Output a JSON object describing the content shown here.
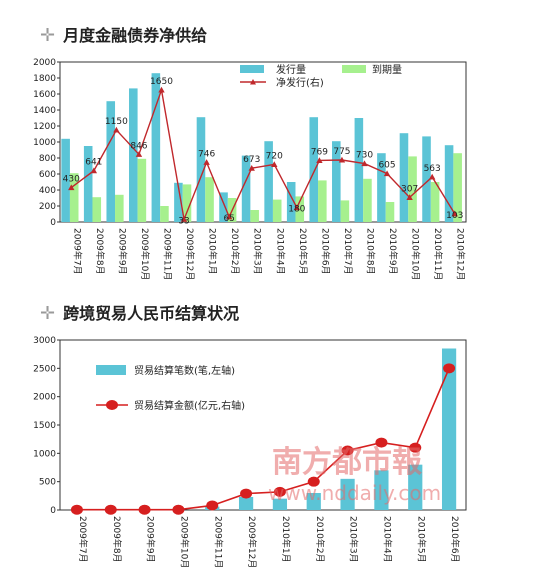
{
  "chart_data": [
    {
      "type": "bar",
      "title": "月度金融债券净供给",
      "categories": [
        "2009年7月",
        "2009年8月",
        "2009年9月",
        "2009年10月",
        "2009年11月",
        "2009年12月",
        "2010年1月",
        "2010年2月",
        "2010年3月",
        "2010年4月",
        "2010年5月",
        "2010年6月",
        "2010年7月",
        "2010年8月",
        "2010年9月",
        "2010年10月",
        "2010年11月",
        "2010年12月"
      ],
      "ylim": [
        0,
        2000
      ],
      "y2lim": [
        0,
        2000
      ],
      "yticks": [
        0,
        200,
        400,
        600,
        800,
        1000,
        1200,
        1400,
        1600,
        1800,
        2000
      ],
      "series": [
        {
          "name": "发行量",
          "type": "bar",
          "color": "#5bc4d6",
          "values": [
            1040,
            950,
            1510,
            1670,
            1860,
            490,
            1310,
            370,
            830,
            1010,
            500,
            1310,
            1010,
            1300,
            860,
            1110,
            1070,
            960
          ]
        },
        {
          "name": "到期量",
          "type": "bar",
          "color": "#a6f08e",
          "values": [
            610,
            310,
            340,
            790,
            200,
            470,
            560,
            300,
            150,
            280,
            320,
            520,
            270,
            540,
            250,
            820,
            500,
            860
          ]
        },
        {
          "name": "净发行(右)",
          "type": "line",
          "color": "#c0282c",
          "values": [
            430,
            641,
            1150,
            846,
            1650,
            33,
            746,
            65,
            673,
            720,
            180,
            769,
            775,
            730,
            605,
            307,
            563,
            103
          ],
          "labels": [
            "430",
            "641",
            "1150",
            "846",
            "1650",
            "33",
            "746",
            "65",
            "673",
            "720",
            "180",
            "769",
            "775",
            "730",
            "605",
            "307",
            "563",
            "103"
          ]
        }
      ],
      "legend": "top-right"
    },
    {
      "type": "bar",
      "title": "跨境贸易人民币结算状况",
      "categories": [
        "2009年7月",
        "2009年8月",
        "2009年9月",
        "2009年10月",
        "2009年11月",
        "2009年12月",
        "2010年1月",
        "2010年2月",
        "2010年3月",
        "2010年4月",
        "2010年5月",
        "2010年6月"
      ],
      "ylim": [
        0,
        3000
      ],
      "yticks": [
        0,
        500,
        1000,
        1500,
        2000,
        2500,
        3000
      ],
      "series": [
        {
          "name": "贸易结算笔数(笔,左轴)",
          "type": "bar",
          "color": "#5bc4d6",
          "values": [
            0,
            0,
            0,
            0,
            60,
            230,
            200,
            300,
            550,
            700,
            800,
            2850
          ]
        },
        {
          "name": "贸易结算金额(亿元,右轴)",
          "type": "line",
          "color": "#d61f1f",
          "values": [
            5,
            5,
            5,
            5,
            80,
            290,
            320,
            500,
            1050,
            1190,
            1100,
            2500
          ]
        }
      ],
      "legend": "top-left"
    }
  ],
  "watermark": {
    "line1": "南方都市報",
    "line2": "www.nddaily.com"
  }
}
